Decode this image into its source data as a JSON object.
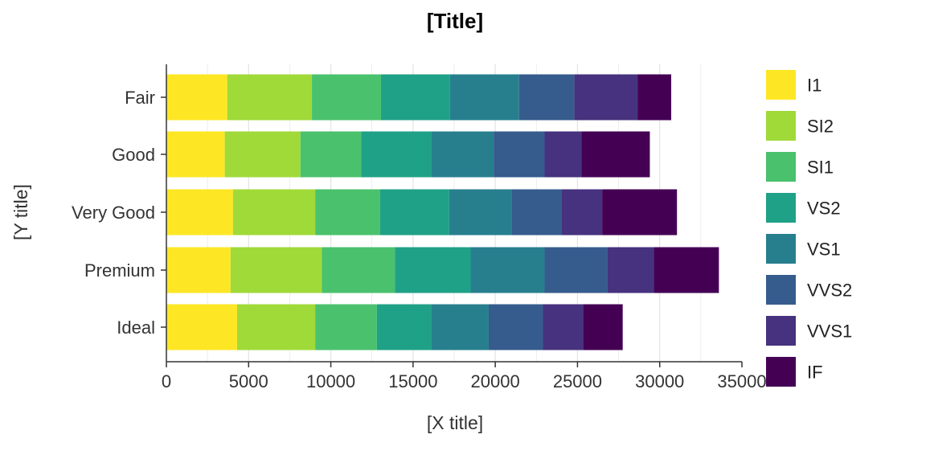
{
  "chart_data": {
    "type": "bar",
    "orientation": "horizontal",
    "stacked": true,
    "title": "[Title]",
    "xlabel": "[X title]",
    "ylabel": "[Y title]",
    "xlim": [
      0,
      35000
    ],
    "x_ticks": [
      0,
      5000,
      10000,
      15000,
      20000,
      25000,
      30000,
      35000
    ],
    "x_tick_labels": [
      "0",
      "5000",
      "10000",
      "15000",
      "20000",
      "25000",
      "30000",
      "35000"
    ],
    "grid": "vertical",
    "legend_position": "right",
    "categories": [
      "Fair",
      "Good",
      "Very Good",
      "Premium",
      "Ideal"
    ],
    "series": [
      {
        "name": "I1",
        "color": "#FDE725",
        "values": [
          3700,
          3550,
          4050,
          3900,
          4300
        ]
      },
      {
        "name": "SI2",
        "color": "#A0DA39",
        "values": [
          5150,
          4600,
          5000,
          5550,
          4750
        ]
      },
      {
        "name": "SI1",
        "color": "#4AC16D",
        "values": [
          4200,
          3700,
          3950,
          4450,
          3750
        ]
      },
      {
        "name": "VS2",
        "color": "#1FA187",
        "values": [
          4200,
          4250,
          4200,
          4600,
          3300
        ]
      },
      {
        "name": "VS1",
        "color": "#277F8E",
        "values": [
          4200,
          3800,
          3800,
          4500,
          3500
        ]
      },
      {
        "name": "VVS2",
        "color": "#365C8D",
        "values": [
          3350,
          3100,
          3050,
          3800,
          3300
        ]
      },
      {
        "name": "VVS1",
        "color": "#46327E",
        "values": [
          3850,
          2250,
          2450,
          2850,
          2450
        ]
      },
      {
        "name": "IF",
        "color": "#440154",
        "values": [
          2050,
          4150,
          4550,
          3950,
          2400
        ]
      }
    ]
  }
}
